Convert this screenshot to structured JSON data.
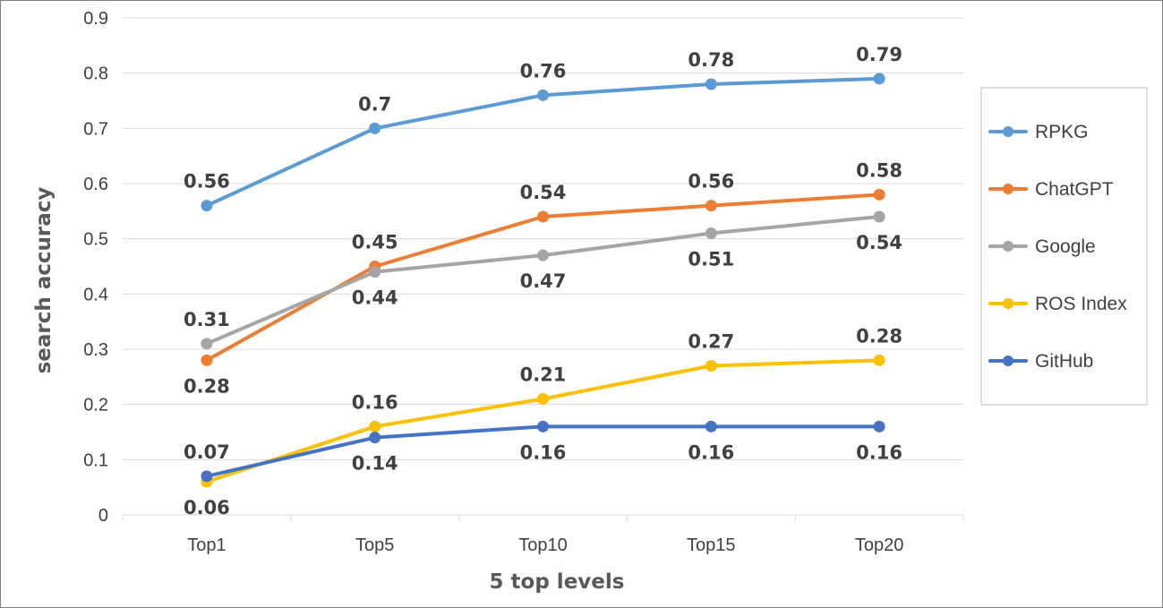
{
  "chart_data": {
    "type": "line",
    "title": "",
    "xlabel": "5 top levels",
    "ylabel": "search accuracy",
    "categories": [
      "Top1",
      "Top5",
      "Top10",
      "Top15",
      "Top20"
    ],
    "ylim": [
      0,
      0.9
    ],
    "yticks": [
      "0",
      "0.1",
      "0.2",
      "0.3",
      "0.4",
      "0.5",
      "0.6",
      "0.7",
      "0.8",
      "0.9"
    ],
    "grid": true,
    "legend_position": "right",
    "series": [
      {
        "name": "RPKG",
        "color": "#5b9bd5",
        "values": [
          0.56,
          0.7,
          0.76,
          0.78,
          0.79
        ],
        "labels": [
          "0.56",
          "0.7",
          "0.76",
          "0.78",
          "0.79"
        ],
        "label_pos": [
          "above",
          "above",
          "above",
          "above",
          "above"
        ]
      },
      {
        "name": "ChatGPT",
        "color": "#ed7d31",
        "values": [
          0.28,
          0.45,
          0.54,
          0.56,
          0.58
        ],
        "labels": [
          "0.28",
          "0.45",
          "0.54",
          "0.56",
          "0.58"
        ],
        "label_pos": [
          "below",
          "above",
          "above",
          "above",
          "above"
        ]
      },
      {
        "name": "Google",
        "color": "#a5a5a5",
        "values": [
          0.31,
          0.44,
          0.47,
          0.51,
          0.54
        ],
        "labels": [
          "0.31",
          "0.44",
          "0.47",
          "0.51",
          "0.54"
        ],
        "label_pos": [
          "above",
          "below",
          "below",
          "below",
          "below"
        ]
      },
      {
        "name": "ROS Index",
        "color": "#ffc000",
        "values": [
          0.06,
          0.16,
          0.21,
          0.27,
          0.28
        ],
        "labels": [
          "0.06",
          "0.16",
          "0.21",
          "0.27",
          "0.28"
        ],
        "label_pos": [
          "below",
          "above",
          "above",
          "above",
          "above"
        ]
      },
      {
        "name": "GitHub",
        "color": "#4472c4",
        "values": [
          0.07,
          0.14,
          0.16,
          0.16,
          0.16
        ],
        "labels": [
          "0.07",
          "0.14",
          "0.16",
          "0.16",
          "0.16"
        ],
        "label_pos": [
          "above",
          "below",
          "below",
          "below",
          "below"
        ]
      }
    ]
  }
}
